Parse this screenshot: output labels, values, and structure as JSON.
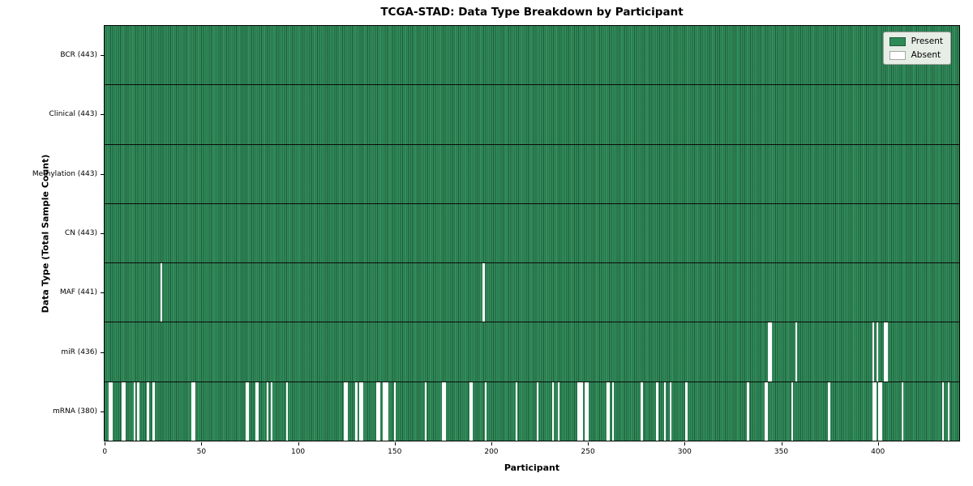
{
  "chart_data": {
    "type": "heatmap",
    "title": "TCGA-STAD: Data Type Breakdown by Participant",
    "xlabel": "Participant",
    "ylabel": "Data Type (Total Sample Count)",
    "x_ticks": [
      0,
      50,
      100,
      150,
      200,
      250,
      300,
      350,
      400
    ],
    "xlim": [
      -0.5,
      442.5
    ],
    "n_participants": 443,
    "cell_encoding": {
      "present": "green",
      "absent": "white"
    },
    "legend": {
      "position": "upper right",
      "entries": [
        {
          "label": "Present",
          "color": "#2e8b57"
        },
        {
          "label": "Absent",
          "color": "#ffffff"
        }
      ]
    },
    "rows": [
      {
        "label": "BCR (443)",
        "data_type": "BCR",
        "present_count": 443,
        "absent_participants": []
      },
      {
        "label": "Clinical (443)",
        "data_type": "Clinical",
        "present_count": 443,
        "absent_participants": []
      },
      {
        "label": "Methylation (443)",
        "data_type": "Methylation",
        "present_count": 443,
        "absent_participants": []
      },
      {
        "label": "CN (443)",
        "data_type": "CN",
        "present_count": 443,
        "absent_participants": []
      },
      {
        "label": "MAF (441)",
        "data_type": "MAF",
        "present_count": 441,
        "absent_participants": [
          29,
          196
        ]
      },
      {
        "label": "miR (436)",
        "data_type": "miR",
        "present_count": 436,
        "absent_participants": [
          344,
          345,
          358,
          398,
          400,
          404,
          405
        ]
      },
      {
        "label": "mRNA (380)",
        "data_type": "mRNA",
        "present_count": 380,
        "absent_participants": [
          2,
          3,
          9,
          10,
          15,
          17,
          22,
          25,
          45,
          46,
          73,
          74,
          78,
          79,
          84,
          86,
          94,
          124,
          125,
          130,
          132,
          133,
          141,
          142,
          144,
          145,
          146,
          150,
          166,
          175,
          176,
          189,
          190,
          197,
          213,
          224,
          232,
          235,
          245,
          246,
          247,
          249,
          250,
          260,
          261,
          263,
          278,
          286,
          290,
          293,
          301,
          333,
          342,
          343,
          356,
          375,
          398,
          399,
          401,
          402,
          413,
          434,
          437
        ]
      }
    ]
  },
  "colors": {
    "present_fill": "#2e8b57",
    "present_edge": "#1e5a3c",
    "absent_fill": "#ffffff",
    "row_divider": "#0a0a0a"
  }
}
